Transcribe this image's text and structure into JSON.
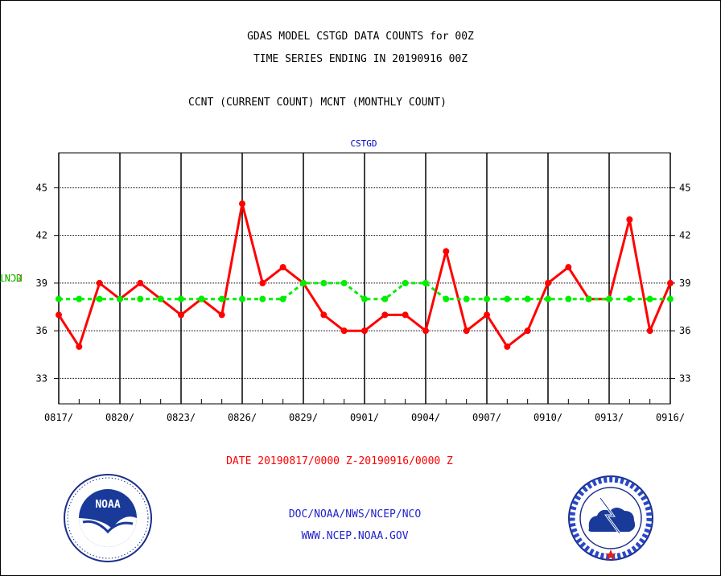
{
  "header": {
    "title_line1": "GDAS MODEL CSTGD DATA COUNTS for 00Z",
    "title_line2": "TIME SERIES ENDING IN 20190916 00Z",
    "title_line3": "CCNT (CURRENT COUNT) MCNT (MONTHLY COUNT)"
  },
  "footer": {
    "date_range": "DATE 20190817/0000 Z-20190916/0000 Z",
    "agency": "DOC/NOAA/NWS/NCEP/NCO",
    "website": "WWW.NCEP.NOAA.GOV"
  },
  "logos": {
    "noaa_label": "NOAA"
  },
  "colors": {
    "ccnt": "#ff0000",
    "mcnt": "#00ee00",
    "station": "#0000cc"
  },
  "chart_data": {
    "type": "line",
    "title": "CSTGD",
    "ylabel_ccnt": "CCNT",
    "ylabel_mcnt": "MCNT",
    "ylim": [
      31.4,
      47.2
    ],
    "y_ticks": [
      33,
      36,
      39,
      42,
      45
    ],
    "x_tick_labels": [
      "0817/",
      "0820/",
      "0823/",
      "0826/",
      "0829/",
      "0901/",
      "0904/",
      "0907/",
      "0910/",
      "0913/",
      "0916/"
    ],
    "x": [
      "0817",
      "0818",
      "0819",
      "0820",
      "0821",
      "0822",
      "0823",
      "0824",
      "0825",
      "0826",
      "0827",
      "0828",
      "0829",
      "0830",
      "0831",
      "0901",
      "0902",
      "0903",
      "0904",
      "0905",
      "0906",
      "0907",
      "0908",
      "0909",
      "0910",
      "0911",
      "0912",
      "0913",
      "0914",
      "0915",
      "0916"
    ],
    "grid": true,
    "series": [
      {
        "name": "CCNT",
        "color": "#ff0000",
        "style": "solid",
        "values": [
          37,
          35,
          39,
          38,
          39,
          38,
          37,
          38,
          37,
          44,
          39,
          40,
          39,
          37,
          36,
          36,
          37,
          37,
          36,
          41,
          36,
          37,
          35,
          36,
          39,
          40,
          38,
          38,
          43,
          36,
          39
        ]
      },
      {
        "name": "MCNT",
        "color": "#00ee00",
        "style": "dashed",
        "values": [
          38,
          38,
          38,
          38,
          38,
          38,
          38,
          38,
          38,
          38,
          38,
          38,
          39,
          39,
          39,
          38,
          38,
          39,
          39,
          38,
          38,
          38,
          38,
          38,
          38,
          38,
          38,
          38,
          38,
          38,
          38
        ]
      }
    ]
  }
}
